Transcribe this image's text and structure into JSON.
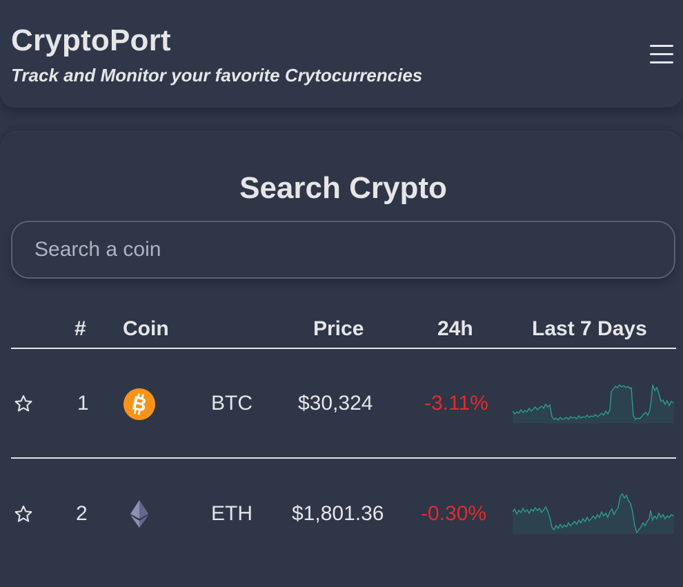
{
  "header": {
    "title": "CryptoPort",
    "subtitle": "Track and Monitor your favorite Crytocurrencies",
    "menu_icon": "hamburger-menu-icon"
  },
  "search": {
    "heading": "Search Crypto",
    "placeholder": "Search a coin",
    "value": ""
  },
  "table": {
    "columns": [
      "#",
      "Coin",
      "Price",
      "24h",
      "Last 7 Days"
    ],
    "rows": [
      {
        "rank": "1",
        "icon": "bitcoin-icon",
        "symbol": "BTC",
        "price": "$30,324",
        "change_24h": "-3.11%",
        "favorite_icon": "star-outline-icon"
      },
      {
        "rank": "2",
        "icon": "ethereum-icon",
        "symbol": "ETH",
        "price": "$1,801.36",
        "change_24h": "-0.30%",
        "favorite_icon": "star-outline-icon"
      }
    ]
  },
  "colors": {
    "background": "#2e3647",
    "text": "#e6e6e8",
    "negative": "#e02d2d",
    "sparkline": "#2a9d8f",
    "bitcoin": "#f7931a",
    "ethereum": "#8a92b2"
  }
}
